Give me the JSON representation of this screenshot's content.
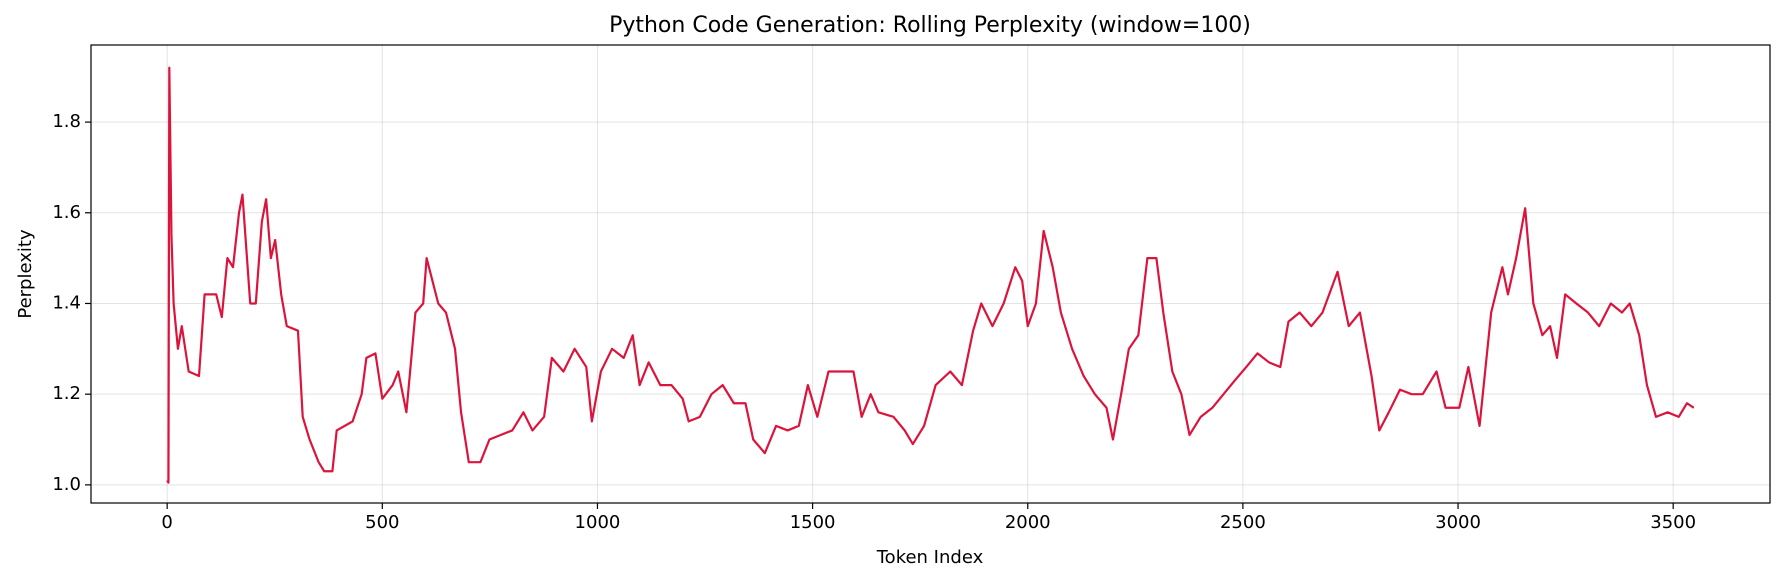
{
  "chart_data": {
    "type": "line",
    "title": "Python Code Generation: Rolling Perplexity (window=100)",
    "x_label": "Token Index",
    "y_label": "Perplexity",
    "xlim": [
      -177,
      3725
    ],
    "ylim": [
      0.96,
      1.97
    ],
    "xticks": [
      0,
      500,
      1000,
      1500,
      2000,
      2500,
      3000,
      3500
    ],
    "yticks": [
      {
        "value": 1,
        "label": "1.0"
      },
      1.2,
      1.4,
      1.6,
      1.8
    ],
    "grid": true,
    "series": [
      {
        "color": "#dc143c",
        "x": [
          0,
          3,
          5,
          10,
          15,
          25,
          34,
          50,
          74,
          87,
          114,
          127,
          140,
          153,
          167,
          175,
          193,
          206,
          220,
          230,
          241,
          251,
          265,
          278,
          304,
          315,
          331,
          352,
          365,
          384,
          394,
          431,
          452,
          463,
          484,
          500,
          524,
          537,
          556,
          577,
          595,
          603,
          630,
          648,
          669,
          683,
          701,
          728,
          749,
          775,
          802,
          828,
          849,
          876,
          894,
          921,
          947,
          974,
          987,
          1008,
          1034,
          1061,
          1082,
          1098,
          1119,
          1146,
          1172,
          1198,
          1212,
          1238,
          1265,
          1291,
          1317,
          1344,
          1362,
          1389,
          1415,
          1442,
          1468,
          1489,
          1511,
          1537,
          1569,
          1595,
          1614,
          1635,
          1653,
          1688,
          1714,
          1733,
          1759,
          1786,
          1820,
          1847,
          1873,
          1892,
          1918,
          1944,
          1971,
          1987,
          2000,
          2019,
          2037,
          2058,
          2077,
          2103,
          2130,
          2156,
          2183,
          2198,
          2217,
          2235,
          2257,
          2278,
          2299,
          2315,
          2336,
          2357,
          2376,
          2402,
          2429,
          2455,
          2481,
          2508,
          2534,
          2561,
          2587,
          2606,
          2632,
          2659,
          2685,
          2720,
          2746,
          2772,
          2799,
          2817,
          2839,
          2865,
          2892,
          2918,
          2950,
          2971,
          3003,
          3024,
          3050,
          3077,
          3103,
          3116,
          3135,
          3156,
          3175,
          3196,
          3214,
          3230,
          3249,
          3275,
          3302,
          3328,
          3355,
          3381,
          3399,
          3421,
          3439,
          3460,
          3487,
          3513,
          3532,
          3548
        ],
        "values": [
          1.01,
          1.005,
          1.92,
          1.55,
          1.4,
          1.3,
          1.35,
          1.25,
          1.24,
          1.42,
          1.42,
          1.37,
          1.5,
          1.48,
          1.6,
          1.64,
          1.4,
          1.4,
          1.58,
          1.63,
          1.5,
          1.54,
          1.42,
          1.35,
          1.34,
          1.15,
          1.1,
          1.05,
          1.03,
          1.03,
          1.12,
          1.14,
          1.2,
          1.28,
          1.29,
          1.19,
          1.22,
          1.25,
          1.16,
          1.38,
          1.4,
          1.5,
          1.4,
          1.38,
          1.3,
          1.16,
          1.05,
          1.05,
          1.1,
          1.11,
          1.12,
          1.16,
          1.12,
          1.15,
          1.28,
          1.25,
          1.3,
          1.26,
          1.14,
          1.25,
          1.3,
          1.28,
          1.33,
          1.22,
          1.27,
          1.22,
          1.22,
          1.19,
          1.14,
          1.15,
          1.2,
          1.22,
          1.18,
          1.18,
          1.1,
          1.07,
          1.13,
          1.12,
          1.13,
          1.22,
          1.15,
          1.25,
          1.25,
          1.25,
          1.15,
          1.2,
          1.16,
          1.15,
          1.12,
          1.09,
          1.13,
          1.22,
          1.25,
          1.22,
          1.34,
          1.4,
          1.35,
          1.4,
          1.48,
          1.45,
          1.35,
          1.4,
          1.56,
          1.48,
          1.38,
          1.3,
          1.24,
          1.2,
          1.17,
          1.1,
          1.2,
          1.3,
          1.33,
          1.5,
          1.5,
          1.38,
          1.25,
          1.2,
          1.11,
          1.15,
          1.17,
          1.2,
          1.23,
          1.26,
          1.29,
          1.27,
          1.26,
          1.36,
          1.38,
          1.35,
          1.38,
          1.47,
          1.35,
          1.38,
          1.24,
          1.12,
          1.16,
          1.21,
          1.2,
          1.2,
          1.25,
          1.17,
          1.17,
          1.26,
          1.13,
          1.38,
          1.48,
          1.42,
          1.5,
          1.61,
          1.4,
          1.33,
          1.35,
          1.28,
          1.42,
          1.4,
          1.38,
          1.35,
          1.4,
          1.38,
          1.4,
          1.33,
          1.22,
          1.15,
          1.16,
          1.15,
          1.18,
          1.17
        ]
      }
    ]
  }
}
